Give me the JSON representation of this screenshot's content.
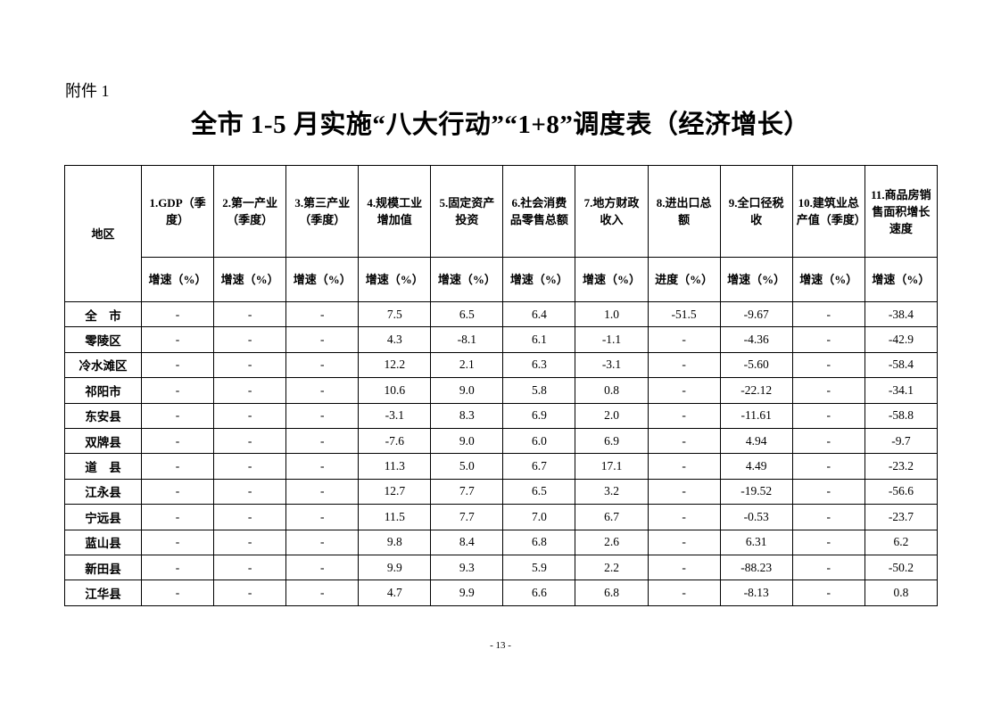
{
  "attachment_label": "附件 1",
  "title": "全市 1-5 月实施“八大行动”“1+8”调度表（经济增长）",
  "table": {
    "region_header": "地区",
    "columns": [
      {
        "name": "1.GDP（季度）",
        "unit": "增速（%）"
      },
      {
        "name": "2.第一产业（季度）",
        "unit": "增速（%）"
      },
      {
        "name": "3.第三产业（季度）",
        "unit": "增速（%）"
      },
      {
        "name": "4.规模工业增加值",
        "unit": "增速（%）"
      },
      {
        "name": "5.固定资产投资",
        "unit": "增速（%）"
      },
      {
        "name": "6.社会消费品零售总额",
        "unit": "增速（%）"
      },
      {
        "name": "7.地方财政收入",
        "unit": "增速（%）"
      },
      {
        "name": "8.进出口总额",
        "unit": "进度（%）"
      },
      {
        "name": "9.全口径税收",
        "unit": "增速（%）"
      },
      {
        "name": "10.建筑业总产值（季度）",
        "unit": "增速（%）"
      },
      {
        "name": "11.商品房销售面积增长速度",
        "unit": "增速（%）"
      }
    ],
    "rows": [
      {
        "region": "全　市",
        "values": [
          "-",
          "-",
          "-",
          "7.5",
          "6.5",
          "6.4",
          "1.0",
          "-51.5",
          "-9.67",
          "-",
          "-38.4"
        ]
      },
      {
        "region": "零陵区",
        "values": [
          "-",
          "-",
          "-",
          "4.3",
          "-8.1",
          "6.1",
          "-1.1",
          "-",
          "-4.36",
          "-",
          "-42.9"
        ]
      },
      {
        "region": "冷水滩区",
        "values": [
          "-",
          "-",
          "-",
          "12.2",
          "2.1",
          "6.3",
          "-3.1",
          "-",
          "-5.60",
          "-",
          "-58.4"
        ]
      },
      {
        "region": "祁阳市",
        "values": [
          "-",
          "-",
          "-",
          "10.6",
          "9.0",
          "5.8",
          "0.8",
          "-",
          "-22.12",
          "-",
          "-34.1"
        ]
      },
      {
        "region": "东安县",
        "values": [
          "-",
          "-",
          "-",
          "-3.1",
          "8.3",
          "6.9",
          "2.0",
          "-",
          "-11.61",
          "-",
          "-58.8"
        ]
      },
      {
        "region": "双牌县",
        "values": [
          "-",
          "-",
          "-",
          "-7.6",
          "9.0",
          "6.0",
          "6.9",
          "-",
          "4.94",
          "-",
          "-9.7"
        ]
      },
      {
        "region": "道　县",
        "values": [
          "-",
          "-",
          "-",
          "11.3",
          "5.0",
          "6.7",
          "17.1",
          "-",
          "4.49",
          "-",
          "-23.2"
        ]
      },
      {
        "region": "江永县",
        "values": [
          "-",
          "-",
          "-",
          "12.7",
          "7.7",
          "6.5",
          "3.2",
          "-",
          "-19.52",
          "-",
          "-56.6"
        ]
      },
      {
        "region": "宁远县",
        "values": [
          "-",
          "-",
          "-",
          "11.5",
          "7.7",
          "7.0",
          "6.7",
          "-",
          "-0.53",
          "-",
          "-23.7"
        ]
      },
      {
        "region": "蓝山县",
        "values": [
          "-",
          "-",
          "-",
          "9.8",
          "8.4",
          "6.8",
          "2.6",
          "-",
          "6.31",
          "-",
          "6.2"
        ]
      },
      {
        "region": "新田县",
        "values": [
          "-",
          "-",
          "-",
          "9.9",
          "9.3",
          "5.9",
          "2.2",
          "-",
          "-88.23",
          "-",
          "-50.2"
        ]
      },
      {
        "region": "江华县",
        "values": [
          "-",
          "-",
          "-",
          "4.7",
          "9.9",
          "6.6",
          "6.8",
          "-",
          "-8.13",
          "-",
          "0.8"
        ]
      }
    ]
  },
  "page_number": "- 13 -"
}
